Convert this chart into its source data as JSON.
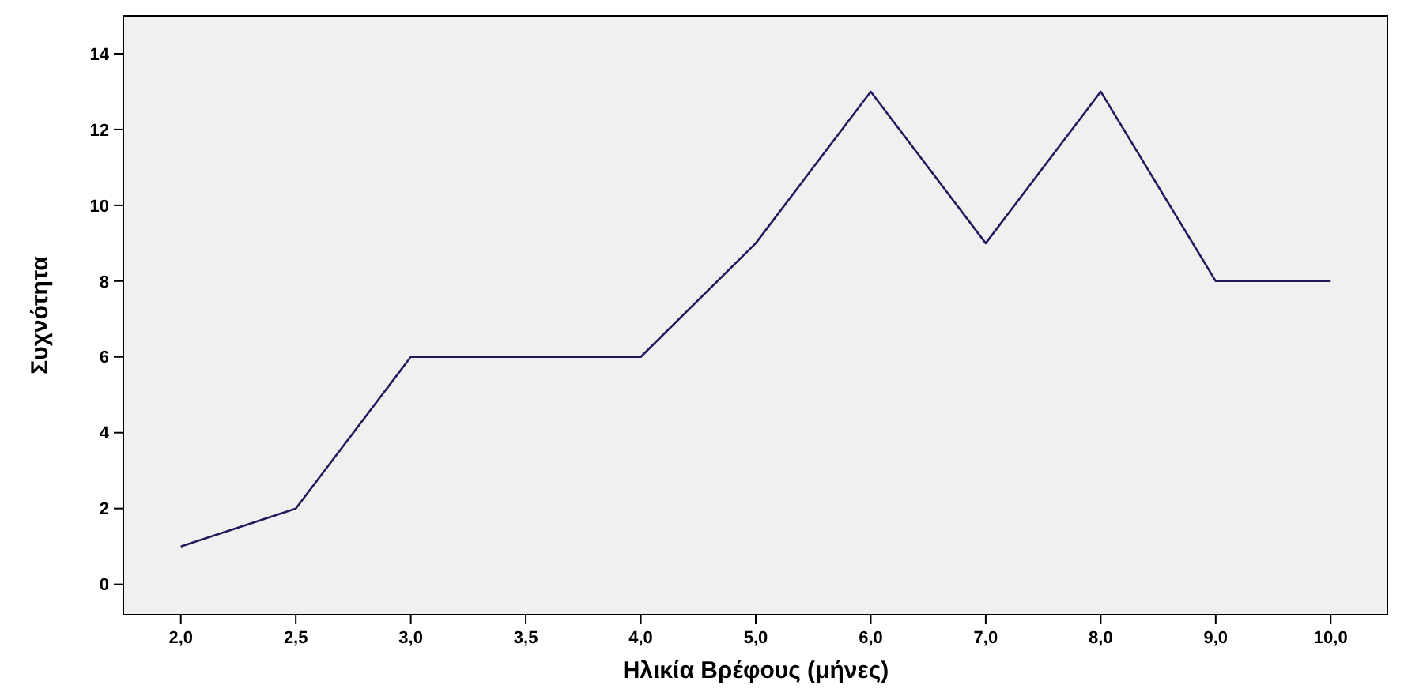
{
  "chart_data": {
    "type": "line",
    "xlabel": "Ηλικία Βρέφους (μήνες)",
    "ylabel": "Συχνότητα",
    "categories": [
      "2,0",
      "2,5",
      "3,0",
      "3,5",
      "4,0",
      "5,0",
      "6,0",
      "7,0",
      "8,0",
      "9,0",
      "10,0"
    ],
    "series": [
      {
        "color": "#1f1a5c",
        "values": [
          1,
          2,
          6,
          6,
          6,
          9,
          13,
          9,
          13,
          8,
          8
        ]
      }
    ],
    "ylim": [
      -0.8,
      15
    ],
    "yticks": [
      0,
      2,
      4,
      6,
      8,
      10,
      12,
      14
    ],
    "marker": "none",
    "line_style": "solid"
  }
}
